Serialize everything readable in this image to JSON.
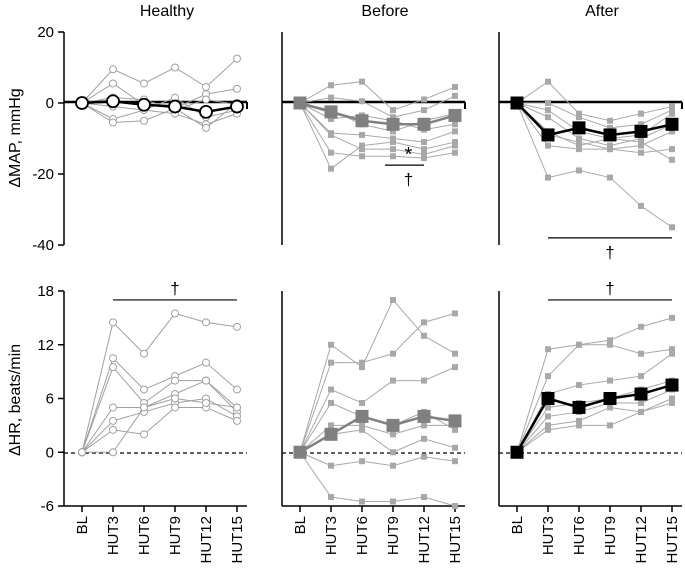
{
  "chart_data": {
    "type": "line",
    "categories": [
      "BL",
      "HUT3",
      "HUT6",
      "HUT9",
      "HUT12",
      "HUT15"
    ],
    "columns": [
      "Healthy",
      "Before",
      "After"
    ],
    "panels": [
      {
        "ylabel": "ΔMAP, mmHg",
        "ylim": [
          -40,
          20
        ],
        "yticks": [
          "20",
          "0",
          "-20",
          "-40"
        ],
        "yticks_num": [
          20,
          0,
          -20,
          -40
        ],
        "groups": [
          {
            "individual": [
              [
                0,
                9.5,
                5.5,
                10,
                4.5,
                12.5
              ],
              [
                0,
                5.5,
                -0.5,
                -1.5,
                2.5,
                4
              ],
              [
                0,
                1.5,
                1,
                -2,
                1,
                -0.5
              ],
              [
                0,
                -1,
                -2,
                1.5,
                -4,
                -2
              ],
              [
                0,
                -4.5,
                -2,
                -3,
                -6,
                -3
              ],
              [
                0,
                -5.5,
                -5,
                -1.5,
                -7,
                0
              ]
            ],
            "mean": [
              0,
              0.5,
              -0.5,
              -1,
              -2.5,
              -1
            ],
            "annotations": []
          },
          {
            "individual": [
              [
                0,
                5,
                6,
                -2,
                1,
                4.5
              ],
              [
                0,
                1.5,
                0.5,
                -4,
                -2,
                2
              ],
              [
                0,
                -2,
                -6,
                -8,
                -5,
                -3
              ],
              [
                0,
                -4.5,
                -3.5,
                -5,
                -7.5,
                -6
              ],
              [
                0,
                -8.5,
                -9,
                -10,
                -11,
                -8
              ],
              [
                0,
                -9,
                -13,
                -13,
                -14.5,
                -12
              ],
              [
                0,
                -14,
                -15,
                -15,
                -15.5,
                -14
              ],
              [
                0,
                -18.5,
                -12,
                -11,
                -13,
                -11
              ]
            ],
            "mean": [
              0,
              -2.5,
              -5,
              -6,
              -6,
              -3.5
            ],
            "annotations": [
              {
                "text": "*",
                "from": "HUT9",
                "to": "HUT12",
                "y": -17.5
              },
              {
                "text": "†",
                "from": "HUT9",
                "to": "HUT12",
                "y": -17.5
              }
            ]
          },
          {
            "individual": [
              [
                0,
                6,
                -3,
                -5,
                -3,
                -1
              ],
              [
                0,
                0,
                -4,
                -7,
                -6,
                -2
              ],
              [
                0,
                -2,
                -8,
                -10,
                -9,
                -3
              ],
              [
                0,
                -4,
                -10,
                -12,
                -10,
                -6
              ],
              [
                0,
                -9,
                -11,
                -13,
                -12,
                -8
              ],
              [
                0,
                -12,
                -13,
                -13,
                -14,
                -13
              ],
              [
                0,
                -21,
                -19,
                -21,
                -29,
                -35
              ],
              [
                0,
                -8,
                -12,
                -10,
                -11,
                -16
              ]
            ],
            "mean": [
              0,
              -9,
              -7,
              -9,
              -8,
              -6
            ],
            "annotations": [
              {
                "text": "†",
                "from": "HUT3",
                "to": "HUT15",
                "y": -38
              }
            ]
          }
        ]
      },
      {
        "ylabel": "ΔHR, beats/min",
        "ylim": [
          -6,
          18
        ],
        "yticks": [
          "18",
          "12",
          "6",
          "0",
          "-6"
        ],
        "yticks_num": [
          18,
          12,
          6,
          0,
          -6
        ],
        "groups": [
          {
            "individual": [
              [
                0,
                14.5,
                11,
                15.5,
                14.5,
                14
              ],
              [
                0,
                10.5,
                7,
                8.5,
                10,
                7
              ],
              [
                0,
                9.5,
                5.5,
                8,
                8,
                5
              ],
              [
                0,
                5,
                5,
                6.5,
                8,
                4.5
              ],
              [
                0,
                3.5,
                4.5,
                5.5,
                6,
                4
              ],
              [
                0,
                2.5,
                2,
                5,
                5,
                3.5
              ],
              [
                0,
                0,
                5,
                6,
                5.5,
                5
              ]
            ],
            "mean": [],
            "annotations": [
              {
                "text": "†",
                "from": "HUT3",
                "to": "HUT15",
                "y": 17
              }
            ]
          },
          {
            "individual": [
              [
                0,
                12,
                9.5,
                17,
                13,
                11
              ],
              [
                0,
                10,
                10,
                11,
                14.5,
                15.5
              ],
              [
                0,
                7,
                5.5,
                8,
                8,
                9.5
              ],
              [
                0,
                5.5,
                4,
                3,
                4.5,
                2.5
              ],
              [
                0,
                2,
                2.5,
                0,
                1.5,
                0.5
              ],
              [
                0,
                -1.5,
                -1,
                -1.5,
                -0.5,
                -1
              ],
              [
                0,
                -5,
                -5.5,
                -5.5,
                -5,
                -6
              ],
              [
                0,
                3,
                3,
                2,
                3,
                3
              ]
            ],
            "mean": [
              0,
              2,
              4,
              3,
              4,
              3.5
            ],
            "annotations": []
          },
          {
            "individual": [
              [
                0,
                11.5,
                12,
                12.5,
                14,
                15
              ],
              [
                0,
                8.5,
                12,
                12,
                11,
                11.5
              ],
              [
                0,
                6.5,
                7.5,
                8,
                8.5,
                11
              ],
              [
                0,
                5,
                5.5,
                6,
                7,
                8
              ],
              [
                0,
                4,
                4.5,
                5.5,
                5.5,
                7
              ],
              [
                0,
                3,
                3.5,
                5,
                4.5,
                6
              ],
              [
                0,
                2.5,
                3,
                3,
                4.5,
                5.5
              ]
            ],
            "mean": [
              0,
              6,
              5,
              6,
              6.5,
              7.5
            ],
            "annotations": [
              {
                "text": "†",
                "from": "HUT3",
                "to": "HUT15",
                "y": 17
              }
            ]
          }
        ]
      }
    ]
  }
}
